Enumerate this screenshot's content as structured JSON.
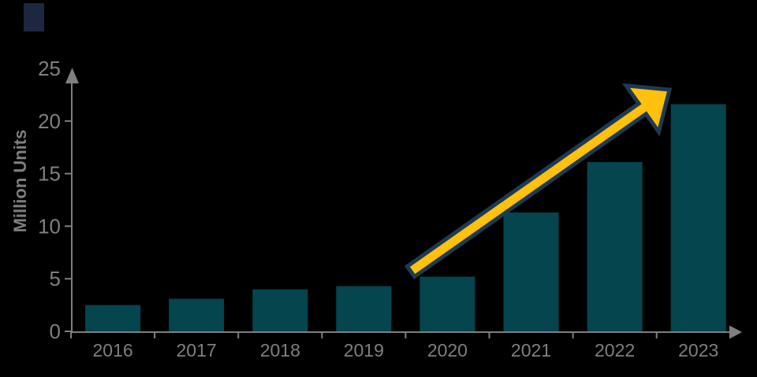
{
  "chart_data": {
    "type": "bar",
    "title": "",
    "categories": [
      "2016",
      "2017",
      "2018",
      "2019",
      "2020",
      "2021",
      "2022",
      "2023"
    ],
    "values": [
      2.5,
      3.1,
      4.0,
      4.3,
      5.2,
      11.3,
      16.1,
      21.6
    ],
    "xlabel": "",
    "ylabel": "Million Units",
    "ylim": [
      0,
      25
    ],
    "yticks": [
      0,
      5,
      10,
      15,
      20,
      25
    ],
    "grid": false,
    "legend_position": "none",
    "axis_style": "gray lines with arrowhead tips",
    "colors": {
      "bar": "#04454E",
      "axis": "#7F7F7F",
      "background": "#000000",
      "trend_arrow_fill": "#FFC10D",
      "trend_arrow_stroke": "#1E3A52",
      "corner_rect": "#1C2840"
    },
    "annotations": [
      {
        "type": "arrow",
        "name": "growth-trend-arrow",
        "from_category": "2020",
        "to_category": "2023"
      }
    ]
  }
}
